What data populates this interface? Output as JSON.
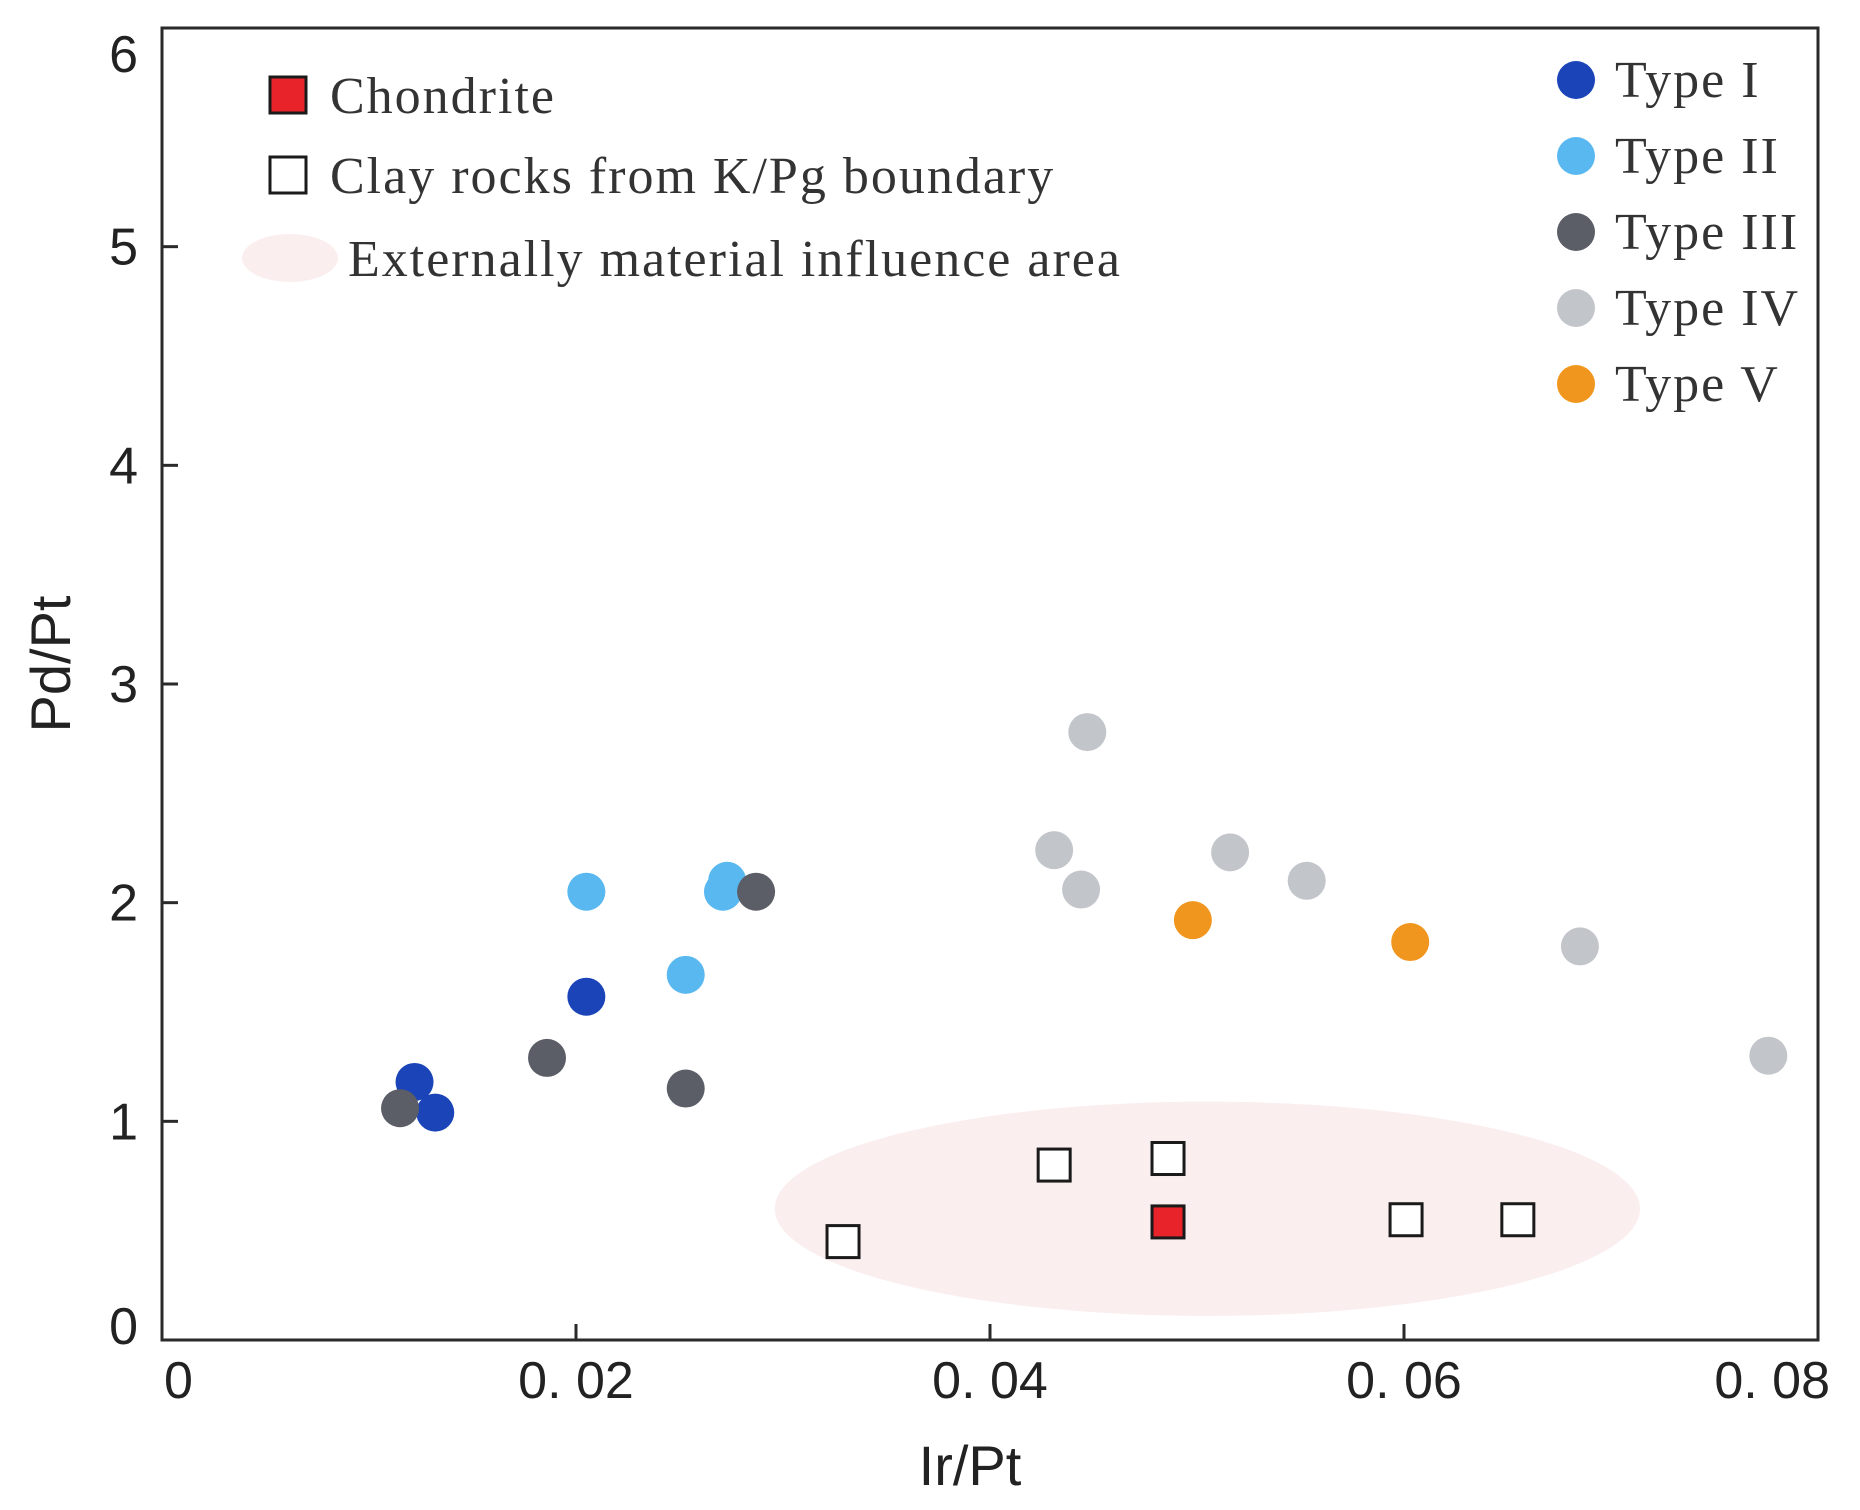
{
  "chart_data": {
    "type": "scatter",
    "title": "",
    "xlabel": "Ir/Pt",
    "ylabel": "Pd/Pt",
    "xlim": [
      0,
      0.08
    ],
    "ylim": [
      0,
      6
    ],
    "grid": false,
    "x_ticks": [
      {
        "value": 0,
        "label": "0"
      },
      {
        "value": 0.02,
        "label": "0. 02"
      },
      {
        "value": 0.04,
        "label": "0. 04"
      },
      {
        "value": 0.06,
        "label": "0. 06"
      },
      {
        "value": 0.08,
        "label": "0. 08"
      }
    ],
    "y_ticks": [
      {
        "value": 0,
        "label": "0"
      },
      {
        "value": 1,
        "label": "1"
      },
      {
        "value": 2,
        "label": "2"
      },
      {
        "value": 3,
        "label": "3"
      },
      {
        "value": 4,
        "label": "4"
      },
      {
        "value": 5,
        "label": "5"
      },
      {
        "value": 6,
        "label": "6"
      }
    ],
    "legend_position": "top-right",
    "series": [
      {
        "name": "Type I",
        "marker": "circle",
        "color": "#1a44b8",
        "points": [
          [
            0.0122,
            1.18
          ],
          [
            0.0132,
            1.04
          ],
          [
            0.0205,
            1.57
          ]
        ]
      },
      {
        "name": "Type II",
        "marker": "circle",
        "color": "#5ab8f0",
        "points": [
          [
            0.0205,
            2.05
          ],
          [
            0.0253,
            1.67
          ],
          [
            0.0273,
            2.1
          ],
          [
            0.0271,
            2.05
          ]
        ]
      },
      {
        "name": "Type III",
        "marker": "circle",
        "color": "#5b5e66",
        "points": [
          [
            0.0115,
            1.06
          ],
          [
            0.0186,
            1.29
          ],
          [
            0.0253,
            1.15
          ],
          [
            0.0287,
            2.05
          ]
        ]
      },
      {
        "name": "Type IV",
        "marker": "circle",
        "color": "#c2c6cb",
        "points": [
          [
            0.0447,
            2.78
          ],
          [
            0.0431,
            2.24
          ],
          [
            0.0444,
            2.06
          ],
          [
            0.0516,
            2.23
          ],
          [
            0.0553,
            2.1
          ],
          [
            0.0685,
            1.8
          ],
          [
            0.0776,
            1.3
          ]
        ]
      },
      {
        "name": "Type V",
        "marker": "circle",
        "color": "#f0961e",
        "points": [
          [
            0.0498,
            1.92
          ],
          [
            0.0603,
            1.82
          ]
        ]
      }
    ],
    "reference_series": [
      {
        "name": "Chondrite",
        "marker": "square",
        "color": "#e8242a",
        "points": [
          [
            0.0486,
            0.54
          ]
        ]
      },
      {
        "name": "Clay  rocks from K/Pg boundary",
        "marker": "open-square",
        "color": "#ffffff",
        "points": [
          [
            0.0329,
            0.45
          ],
          [
            0.0431,
            0.8
          ],
          [
            0.0486,
            0.83
          ],
          [
            0.0601,
            0.55
          ],
          [
            0.0655,
            0.55
          ]
        ]
      }
    ],
    "region": {
      "name": "Externally material influence area",
      "color": "#fbeeee",
      "center": [
        0.0505,
        0.6
      ],
      "radius": [
        0.0209,
        0.49
      ]
    },
    "legend_right": [
      "Type I",
      "Type II",
      "Type III",
      "Type IV",
      "Type V"
    ],
    "legend_left": [
      "Chondrite",
      "Clay  rocks from K/Pg boundary",
      "Externally material influence area"
    ]
  }
}
